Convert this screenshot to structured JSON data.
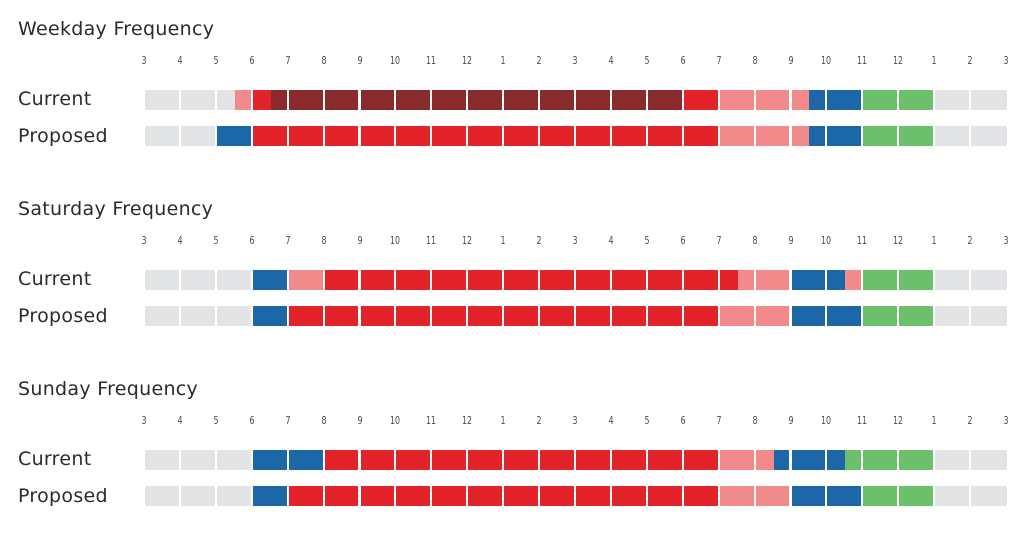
{
  "chart_data": {
    "type": "timeline",
    "hour_labels": [
      "3",
      "4",
      "5",
      "6",
      "7",
      "8",
      "9",
      "10",
      "11",
      "12",
      "1",
      "2",
      "3",
      "4",
      "5",
      "6",
      "7",
      "8",
      "9",
      "10",
      "11",
      "12",
      "1",
      "2",
      "3"
    ],
    "start_hour": 3,
    "end_hour": 27,
    "colors": {
      "none": "#e3e4e6",
      "tier1": "#8b2a2c",
      "tier2": "#e3232a",
      "tier3": "#f28a8c",
      "tier4": "#1c67a8",
      "tier5": "#6cc06c"
    },
    "charts": [
      {
        "title": "Weekday Frequency",
        "rows": [
          {
            "label": "Current",
            "segments": [
              {
                "start": 3,
                "end": 5.5,
                "level": "none"
              },
              {
                "start": 5.5,
                "end": 6.0,
                "level": "tier3"
              },
              {
                "start": 6.0,
                "end": 6.5,
                "level": "tier2"
              },
              {
                "start": 6.5,
                "end": 18.0,
                "level": "tier1"
              },
              {
                "start": 18.0,
                "end": 19.0,
                "level": "tier2"
              },
              {
                "start": 19.0,
                "end": 21.5,
                "level": "tier3"
              },
              {
                "start": 21.5,
                "end": 23.0,
                "level": "tier4"
              },
              {
                "start": 23.0,
                "end": 25.0,
                "level": "tier5"
              },
              {
                "start": 25.0,
                "end": 27.0,
                "level": "none"
              }
            ]
          },
          {
            "label": "Proposed",
            "segments": [
              {
                "start": 3,
                "end": 5.0,
                "level": "none"
              },
              {
                "start": 5.0,
                "end": 6.0,
                "level": "tier4"
              },
              {
                "start": 6.0,
                "end": 19.0,
                "level": "tier2"
              },
              {
                "start": 19.0,
                "end": 21.5,
                "level": "tier3"
              },
              {
                "start": 21.5,
                "end": 23.0,
                "level": "tier4"
              },
              {
                "start": 23.0,
                "end": 25.0,
                "level": "tier5"
              },
              {
                "start": 25.0,
                "end": 27.0,
                "level": "none"
              }
            ]
          }
        ]
      },
      {
        "title": "Saturday Frequency",
        "rows": [
          {
            "label": "Current",
            "segments": [
              {
                "start": 3,
                "end": 6.0,
                "level": "none"
              },
              {
                "start": 6.0,
                "end": 7.0,
                "level": "tier4"
              },
              {
                "start": 7.0,
                "end": 8.0,
                "level": "tier3"
              },
              {
                "start": 8.0,
                "end": 19.5,
                "level": "tier2"
              },
              {
                "start": 19.5,
                "end": 21.0,
                "level": "tier3"
              },
              {
                "start": 21.0,
                "end": 22.5,
                "level": "tier4"
              },
              {
                "start": 22.5,
                "end": 23.0,
                "level": "tier3"
              },
              {
                "start": 23.0,
                "end": 25.0,
                "level": "tier5"
              },
              {
                "start": 25.0,
                "end": 27.0,
                "level": "none"
              }
            ]
          },
          {
            "label": "Proposed",
            "segments": [
              {
                "start": 3,
                "end": 6.0,
                "level": "none"
              },
              {
                "start": 6.0,
                "end": 7.0,
                "level": "tier4"
              },
              {
                "start": 7.0,
                "end": 19.0,
                "level": "tier2"
              },
              {
                "start": 19.0,
                "end": 21.0,
                "level": "tier3"
              },
              {
                "start": 21.0,
                "end": 23.0,
                "level": "tier4"
              },
              {
                "start": 23.0,
                "end": 25.0,
                "level": "tier5"
              },
              {
                "start": 25.0,
                "end": 27.0,
                "level": "none"
              }
            ]
          }
        ]
      },
      {
        "title": "Sunday Frequency",
        "rows": [
          {
            "label": "Current",
            "segments": [
              {
                "start": 3,
                "end": 6.0,
                "level": "none"
              },
              {
                "start": 6.0,
                "end": 8.0,
                "level": "tier4"
              },
              {
                "start": 8.0,
                "end": 19.0,
                "level": "tier2"
              },
              {
                "start": 19.0,
                "end": 20.5,
                "level": "tier3"
              },
              {
                "start": 20.5,
                "end": 22.5,
                "level": "tier4"
              },
              {
                "start": 22.5,
                "end": 25.0,
                "level": "tier5"
              },
              {
                "start": 25.0,
                "end": 27.0,
                "level": "none"
              }
            ]
          },
          {
            "label": "Proposed",
            "segments": [
              {
                "start": 3,
                "end": 6.0,
                "level": "none"
              },
              {
                "start": 6.0,
                "end": 7.0,
                "level": "tier4"
              },
              {
                "start": 7.0,
                "end": 19.0,
                "level": "tier2"
              },
              {
                "start": 19.0,
                "end": 21.0,
                "level": "tier3"
              },
              {
                "start": 21.0,
                "end": 23.0,
                "level": "tier4"
              },
              {
                "start": 23.0,
                "end": 25.0,
                "level": "tier5"
              },
              {
                "start": 25.0,
                "end": 27.0,
                "level": "none"
              }
            ]
          }
        ]
      }
    ]
  }
}
